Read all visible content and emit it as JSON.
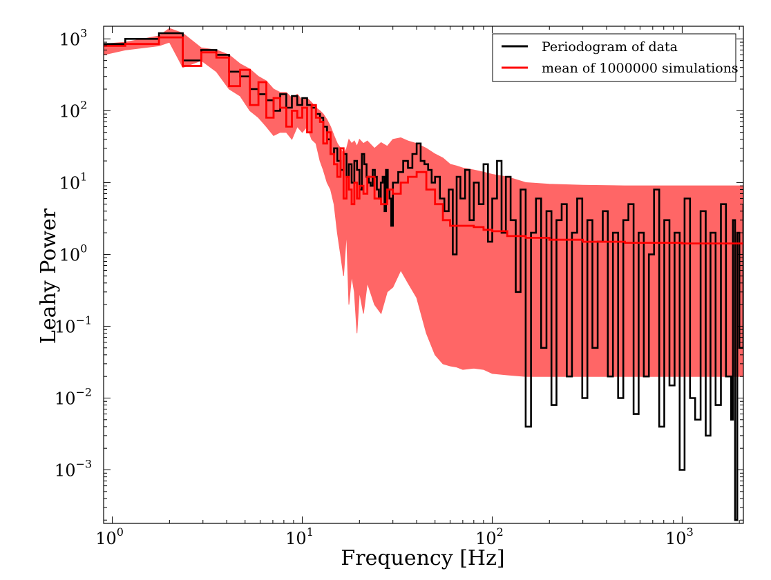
{
  "chart_data": {
    "type": "line",
    "title": "",
    "xlabel": "Frequency [Hz]",
    "ylabel": "Leahy Power",
    "xscale": "log",
    "yscale": "log",
    "xlim": [
      0.9,
      2100
    ],
    "ylim": [
      0.00018,
      1500
    ],
    "x_ticks": [
      {
        "value": 1,
        "base": "10",
        "exp": "0"
      },
      {
        "value": 10,
        "base": "10",
        "exp": "1"
      },
      {
        "value": 100,
        "base": "10",
        "exp": "2"
      },
      {
        "value": 1000,
        "base": "10",
        "exp": "3"
      }
    ],
    "y_ticks": [
      {
        "value": 0.001,
        "base": "10",
        "exp": "−3"
      },
      {
        "value": 0.01,
        "base": "10",
        "exp": "−2"
      },
      {
        "value": 0.1,
        "base": "10",
        "exp": "−1"
      },
      {
        "value": 1,
        "base": "10",
        "exp": "0"
      },
      {
        "value": 10,
        "base": "10",
        "exp": "1"
      },
      {
        "value": 100,
        "base": "10",
        "exp": "2"
      },
      {
        "value": 1000,
        "base": "10",
        "exp": "3"
      }
    ],
    "grid": false,
    "legend_position": "top-right",
    "series": [
      {
        "name": "Periodogram of data",
        "color": "#000000",
        "style": "steps",
        "x": [
          0.9,
          1.17,
          1.76,
          2.35,
          2.94,
          3.53,
          4.12,
          4.71,
          5.3,
          5.88,
          6.47,
          7.06,
          7.65,
          8.24,
          8.82,
          9.41,
          10.0,
          10.6,
          11.2,
          11.8,
          12.4,
          12.9,
          13.5,
          14.1,
          14.7,
          15.3,
          15.9,
          16.5,
          17.1,
          17.6,
          18.2,
          18.8,
          19.4,
          20.0,
          20.6,
          21.2,
          21.8,
          22.4,
          22.9,
          23.5,
          24.1,
          24.7,
          25.3,
          25.9,
          26.5,
          27.1,
          27.6,
          28.2,
          28.8,
          29.4,
          30.0,
          32.0,
          34.0,
          36.0,
          38.0,
          40.0,
          42.0,
          44.0,
          46.0,
          48.0,
          50.0,
          53.0,
          56.0,
          59.0,
          62.0,
          65.0,
          68.0,
          72.0,
          76.0,
          80.0,
          85.0,
          90.0,
          95.0,
          100.0,
          106.0,
          112.0,
          118.0,
          125.0,
          133.0,
          141.0,
          150.0,
          160.0,
          170.0,
          181.0,
          193.0,
          205.0,
          218.0,
          232.0,
          247.0,
          263.0,
          280.0,
          298.0,
          317.0,
          337.0,
          359.0,
          382.0,
          406.0,
          432.0,
          460.0,
          490.0,
          521.0,
          555.0,
          590.0,
          628.0,
          668.0,
          711.0,
          757.0,
          805.0,
          857.0,
          912.0,
          970.0,
          1030.0,
          1100.0,
          1170.0,
          1250.0,
          1330.0,
          1410.0,
          1500.0,
          1600.0,
          1700.0,
          1810.0,
          1850.0,
          1900.0,
          1950.0,
          2000.0,
          2100.0
        ],
        "y": [
          850,
          1000,
          1200,
          500,
          700,
          600,
          350,
          300,
          200,
          170,
          140,
          100,
          170,
          110,
          160,
          120,
          150,
          120,
          110,
          90,
          80,
          60,
          40,
          25,
          30,
          20,
          15,
          25,
          12,
          18,
          10,
          20,
          15,
          8,
          25,
          18,
          12,
          10,
          9,
          15,
          12,
          8,
          6,
          10,
          12,
          4,
          15,
          8,
          6,
          2.5,
          10,
          14,
          20,
          16,
          25,
          35,
          20,
          18,
          15,
          10,
          12,
          6,
          4,
          8,
          1.0,
          12,
          6,
          15,
          3,
          10,
          5,
          18,
          1.5,
          6,
          20,
          2,
          12,
          3,
          0.3,
          8,
          0.004,
          2,
          6,
          0.05,
          4,
          0.008,
          3,
          5,
          0.02,
          2,
          6,
          0.01,
          3,
          0.05,
          1.5,
          4,
          0.02,
          2,
          0.01,
          3,
          5,
          0.006,
          2,
          0.02,
          1,
          8,
          0.004,
          3,
          0.015,
          2,
          0.001,
          6,
          0.01,
          0.005,
          4,
          0.003,
          2,
          0.008,
          5,
          0.02,
          0.005,
          3,
          0.0002,
          2,
          0.05,
          5
        ]
      },
      {
        "name": "mean of 1000000 simulations",
        "color": "#ff0000",
        "style": "steps",
        "x": [
          0.9,
          1.17,
          1.76,
          2.35,
          2.94,
          3.53,
          4.12,
          4.71,
          5.3,
          5.88,
          6.47,
          7.06,
          7.65,
          8.24,
          8.82,
          9.41,
          10.0,
          10.6,
          11.2,
          11.8,
          12.4,
          12.9,
          13.5,
          14.1,
          14.7,
          15.3,
          15.9,
          16.5,
          17.1,
          17.6,
          18.2,
          18.8,
          19.4,
          20.0,
          21.0,
          22.0,
          24.0,
          26.0,
          28.0,
          30.0,
          33.0,
          36.0,
          40.0,
          45.0,
          50.0,
          55.0,
          60.0,
          65.0,
          70.0,
          80.0,
          90.0,
          100.0,
          120.0,
          150.0,
          200.0,
          300.0,
          500.0,
          1000.0,
          2100.0
        ],
        "y": [
          800,
          850,
          1050,
          420,
          650,
          550,
          220,
          370,
          120,
          250,
          80,
          150,
          110,
          60,
          100,
          80,
          110,
          50,
          120,
          80,
          70,
          35,
          50,
          25,
          18,
          12,
          30,
          6,
          12,
          8,
          5,
          10,
          6,
          9,
          7,
          12,
          6,
          5,
          8,
          7,
          10,
          12,
          14,
          8,
          5,
          3,
          2.5,
          2.5,
          2.5,
          2.4,
          2.2,
          2.1,
          1.8,
          1.7,
          1.6,
          1.5,
          1.45,
          1.42,
          1.42
        ]
      }
    ],
    "band": {
      "color": "#ff6666",
      "x": [
        0.9,
        1.17,
        1.76,
        2.0,
        2.35,
        2.94,
        3.53,
        4.12,
        4.71,
        5.3,
        5.88,
        6.47,
        7.06,
        7.65,
        8.24,
        8.82,
        9.41,
        10.0,
        10.6,
        11.2,
        11.8,
        12.4,
        12.9,
        13.5,
        14.1,
        14.7,
        15.3,
        15.9,
        16.5,
        17.1,
        17.6,
        18.2,
        18.8,
        19.4,
        20.0,
        21.0,
        22.0,
        24.0,
        26.0,
        28.0,
        30.0,
        33.0,
        36.0,
        40.0,
        45.0,
        50.0,
        55.0,
        60.0,
        65.0,
        70.0,
        80.0,
        90.0,
        100.0,
        120.0,
        150.0,
        200.0,
        300.0,
        500.0,
        1000.0,
        2100.0
      ],
      "upper": [
        850,
        900,
        1100,
        1400,
        1200,
        750,
        700,
        600,
        450,
        380,
        300,
        260,
        200,
        180,
        180,
        150,
        170,
        140,
        150,
        130,
        110,
        100,
        90,
        75,
        60,
        45,
        35,
        30,
        25,
        30,
        40,
        35,
        38,
        32,
        40,
        35,
        38,
        30,
        36,
        32,
        40,
        42,
        38,
        35,
        30,
        25,
        22,
        18,
        17,
        16,
        15,
        14,
        13,
        12,
        10,
        9.5,
        9.2,
        9.0,
        9.0,
        9.0
      ],
      "lower": [
        600,
        700,
        800,
        900,
        400,
        500,
        350,
        200,
        160,
        100,
        80,
        60,
        45,
        50,
        50,
        40,
        60,
        50,
        60,
        40,
        35,
        20,
        15,
        10,
        8,
        5,
        2,
        1,
        0.5,
        2,
        0.2,
        0.5,
        0.3,
        0.08,
        0.3,
        0.15,
        0.4,
        0.2,
        0.15,
        0.3,
        0.35,
        0.6,
        0.4,
        0.25,
        0.08,
        0.04,
        0.03,
        0.028,
        0.027,
        0.025,
        0.026,
        0.025,
        0.022,
        0.021,
        0.02,
        0.02,
        0.02,
        0.02,
        0.02,
        0.02
      ]
    }
  }
}
